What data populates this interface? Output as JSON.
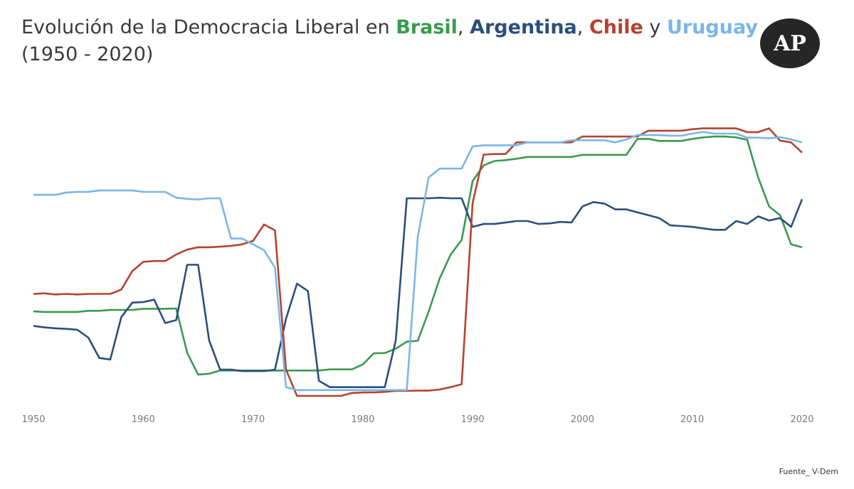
{
  "title": {
    "prefix": "Evolución de la Democracia Liberal en ",
    "sep1": ", ",
    "sep2": ", ",
    "sep3": " y ",
    "line2": "(1950 - 2020)"
  },
  "logo": {
    "text": "AP"
  },
  "source": "Fuente_ V-Dem",
  "colors": {
    "Brasil": "#3a9a4f",
    "Argentina": "#2a4f7c",
    "Chile": "#b5432f",
    "Uruguay": "#7ab6e8"
  },
  "chart_data": {
    "type": "line",
    "title": "Evolución de la Democracia Liberal en Brasil, Argentina, Chile y Uruguay (1950 - 2020)",
    "xlabel": "",
    "ylabel": "",
    "xlim": [
      1950,
      2020
    ],
    "ylim": [
      0,
      1
    ],
    "grid": false,
    "legend": "in-title",
    "xticks": [
      1950,
      1960,
      1970,
      1980,
      1990,
      2000,
      2010,
      2020
    ],
    "x": [
      1950,
      1951,
      1952,
      1953,
      1954,
      1955,
      1956,
      1957,
      1958,
      1959,
      1960,
      1961,
      1962,
      1963,
      1964,
      1965,
      1966,
      1967,
      1968,
      1969,
      1970,
      1971,
      1972,
      1973,
      1974,
      1975,
      1976,
      1977,
      1978,
      1979,
      1980,
      1981,
      1982,
      1983,
      1984,
      1985,
      1986,
      1987,
      1988,
      1989,
      1990,
      1991,
      1992,
      1993,
      1994,
      1995,
      1996,
      1997,
      1998,
      1999,
      2000,
      2001,
      2002,
      2003,
      2004,
      2005,
      2006,
      2007,
      2008,
      2009,
      2010,
      2011,
      2012,
      2013,
      2014,
      2015,
      2016,
      2017,
      2018,
      2019,
      2020
    ],
    "series": [
      {
        "name": "Brasil",
        "values": [
          0.29,
          0.288,
          0.288,
          0.288,
          0.288,
          0.292,
          0.292,
          0.295,
          0.295,
          0.295,
          0.299,
          0.299,
          0.299,
          0.3,
          0.148,
          0.073,
          0.076,
          0.087,
          0.087,
          0.087,
          0.087,
          0.087,
          0.087,
          0.087,
          0.087,
          0.087,
          0.087,
          0.091,
          0.091,
          0.091,
          0.108,
          0.146,
          0.147,
          0.162,
          0.186,
          0.189,
          0.29,
          0.404,
          0.485,
          0.535,
          0.737,
          0.791,
          0.806,
          0.809,
          0.814,
          0.82,
          0.82,
          0.82,
          0.82,
          0.82,
          0.827,
          0.827,
          0.827,
          0.827,
          0.827,
          0.882,
          0.882,
          0.875,
          0.875,
          0.875,
          0.882,
          0.887,
          0.89,
          0.89,
          0.887,
          0.879,
          0.75,
          0.65,
          0.62,
          0.52,
          0.51
        ]
      },
      {
        "name": "Argentina",
        "values": [
          0.24,
          0.235,
          0.232,
          0.23,
          0.227,
          0.2,
          0.13,
          0.125,
          0.27,
          0.32,
          0.322,
          0.33,
          0.25,
          0.26,
          0.45,
          0.45,
          0.19,
          0.09,
          0.09,
          0.085,
          0.085,
          0.085,
          0.09,
          0.265,
          0.385,
          0.36,
          0.052,
          0.03,
          0.03,
          0.03,
          0.03,
          0.03,
          0.03,
          0.19,
          0.678,
          0.678,
          0.678,
          0.68,
          0.678,
          0.678,
          0.58,
          0.59,
          0.59,
          0.595,
          0.6,
          0.6,
          0.59,
          0.592,
          0.597,
          0.595,
          0.65,
          0.665,
          0.66,
          0.64,
          0.64,
          0.63,
          0.62,
          0.61,
          0.585,
          0.583,
          0.58,
          0.575,
          0.57,
          0.57,
          0.6,
          0.59,
          0.616,
          0.602,
          0.61,
          0.58,
          0.675
        ]
      },
      {
        "name": "Chile",
        "values": [
          0.35,
          0.352,
          0.348,
          0.35,
          0.348,
          0.35,
          0.35,
          0.35,
          0.365,
          0.428,
          0.46,
          0.463,
          0.463,
          0.485,
          0.502,
          0.51,
          0.51,
          0.512,
          0.515,
          0.52,
          0.532,
          0.588,
          0.568,
          0.09,
          0.0,
          0.0,
          0.0,
          0.0,
          0.0,
          0.01,
          0.012,
          0.012,
          0.014,
          0.017,
          0.017,
          0.018,
          0.018,
          0.022,
          0.03,
          0.04,
          0.662,
          0.828,
          0.83,
          0.83,
          0.87,
          0.87,
          0.87,
          0.87,
          0.87,
          0.87,
          0.89,
          0.89,
          0.89,
          0.89,
          0.89,
          0.89,
          0.91,
          0.91,
          0.91,
          0.91,
          0.915,
          0.918,
          0.918,
          0.918,
          0.918,
          0.905,
          0.905,
          0.918,
          0.876,
          0.87,
          0.835
        ]
      },
      {
        "name": "Uruguay",
        "values": [
          0.69,
          0.69,
          0.69,
          0.698,
          0.7,
          0.7,
          0.705,
          0.705,
          0.705,
          0.705,
          0.7,
          0.7,
          0.7,
          0.68,
          0.676,
          0.674,
          0.678,
          0.678,
          0.54,
          0.54,
          0.52,
          0.5,
          0.44,
          0.03,
          0.02,
          0.02,
          0.02,
          0.02,
          0.02,
          0.02,
          0.02,
          0.02,
          0.02,
          0.02,
          0.02,
          0.545,
          0.75,
          0.78,
          0.78,
          0.78,
          0.856,
          0.86,
          0.86,
          0.86,
          0.86,
          0.87,
          0.87,
          0.87,
          0.87,
          0.877,
          0.877,
          0.877,
          0.877,
          0.87,
          0.88,
          0.895,
          0.895,
          0.895,
          0.893,
          0.893,
          0.9,
          0.906,
          0.9,
          0.9,
          0.9,
          0.886,
          0.886,
          0.884,
          0.888,
          0.88,
          0.87
        ]
      }
    ]
  }
}
